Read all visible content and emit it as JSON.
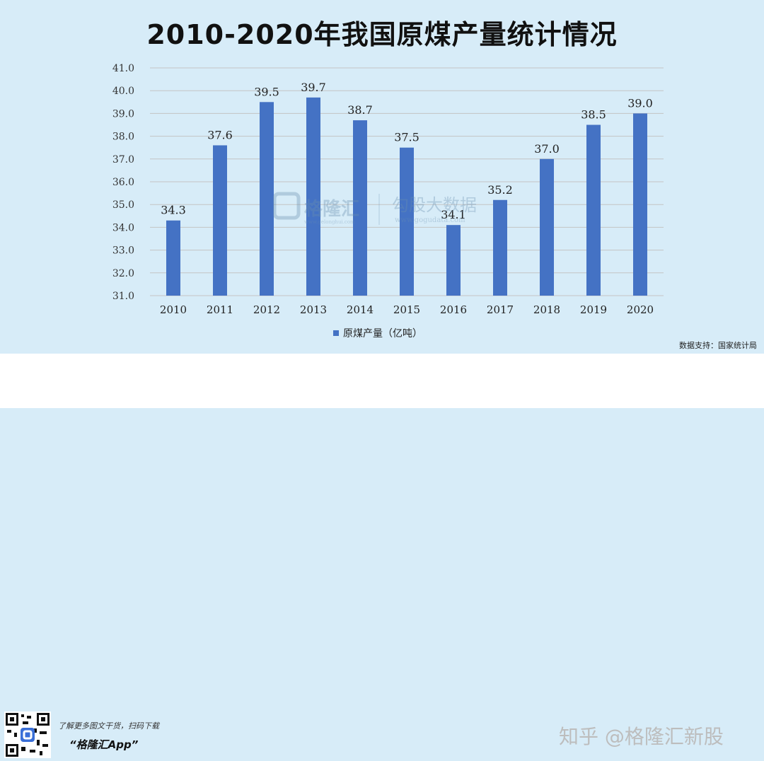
{
  "title": "2010-2020年我国原煤产量统计情况",
  "chart_data": {
    "type": "bar",
    "categories": [
      "2010",
      "2011",
      "2012",
      "2013",
      "2014",
      "2015",
      "2016",
      "2017",
      "2018",
      "2019",
      "2020"
    ],
    "values": [
      34.3,
      37.6,
      39.5,
      39.7,
      38.7,
      37.5,
      34.1,
      35.2,
      37.0,
      38.5,
      39.0
    ],
    "value_labels": [
      "34.3",
      "37.6",
      "39.5",
      "39.7",
      "38.7",
      "37.5",
      "34.1",
      "35.2",
      "37.0",
      "38.5",
      "39.0"
    ],
    "ylim": [
      31.0,
      41.0
    ],
    "yticks": [
      "31.0",
      "32.0",
      "33.0",
      "34.0",
      "35.0",
      "36.0",
      "37.0",
      "38.0",
      "39.0",
      "40.0",
      "41.0"
    ],
    "legend": "原煤产量（亿吨）",
    "legend_position": "bottom",
    "grid": true,
    "bar_color": "#4472c4"
  },
  "source": "数据支持：国家统计局",
  "watermark": {
    "brand": "格隆汇",
    "brand_small": "www.gelonghui.com",
    "gogu": "勾股大数据",
    "gogu_small": "www.gogudata.com"
  },
  "footer": {
    "line1": "了解更多图文干货，扫码下载",
    "line2": "“格隆汇App”",
    "zhihu": "知乎 @格隆汇新股"
  }
}
